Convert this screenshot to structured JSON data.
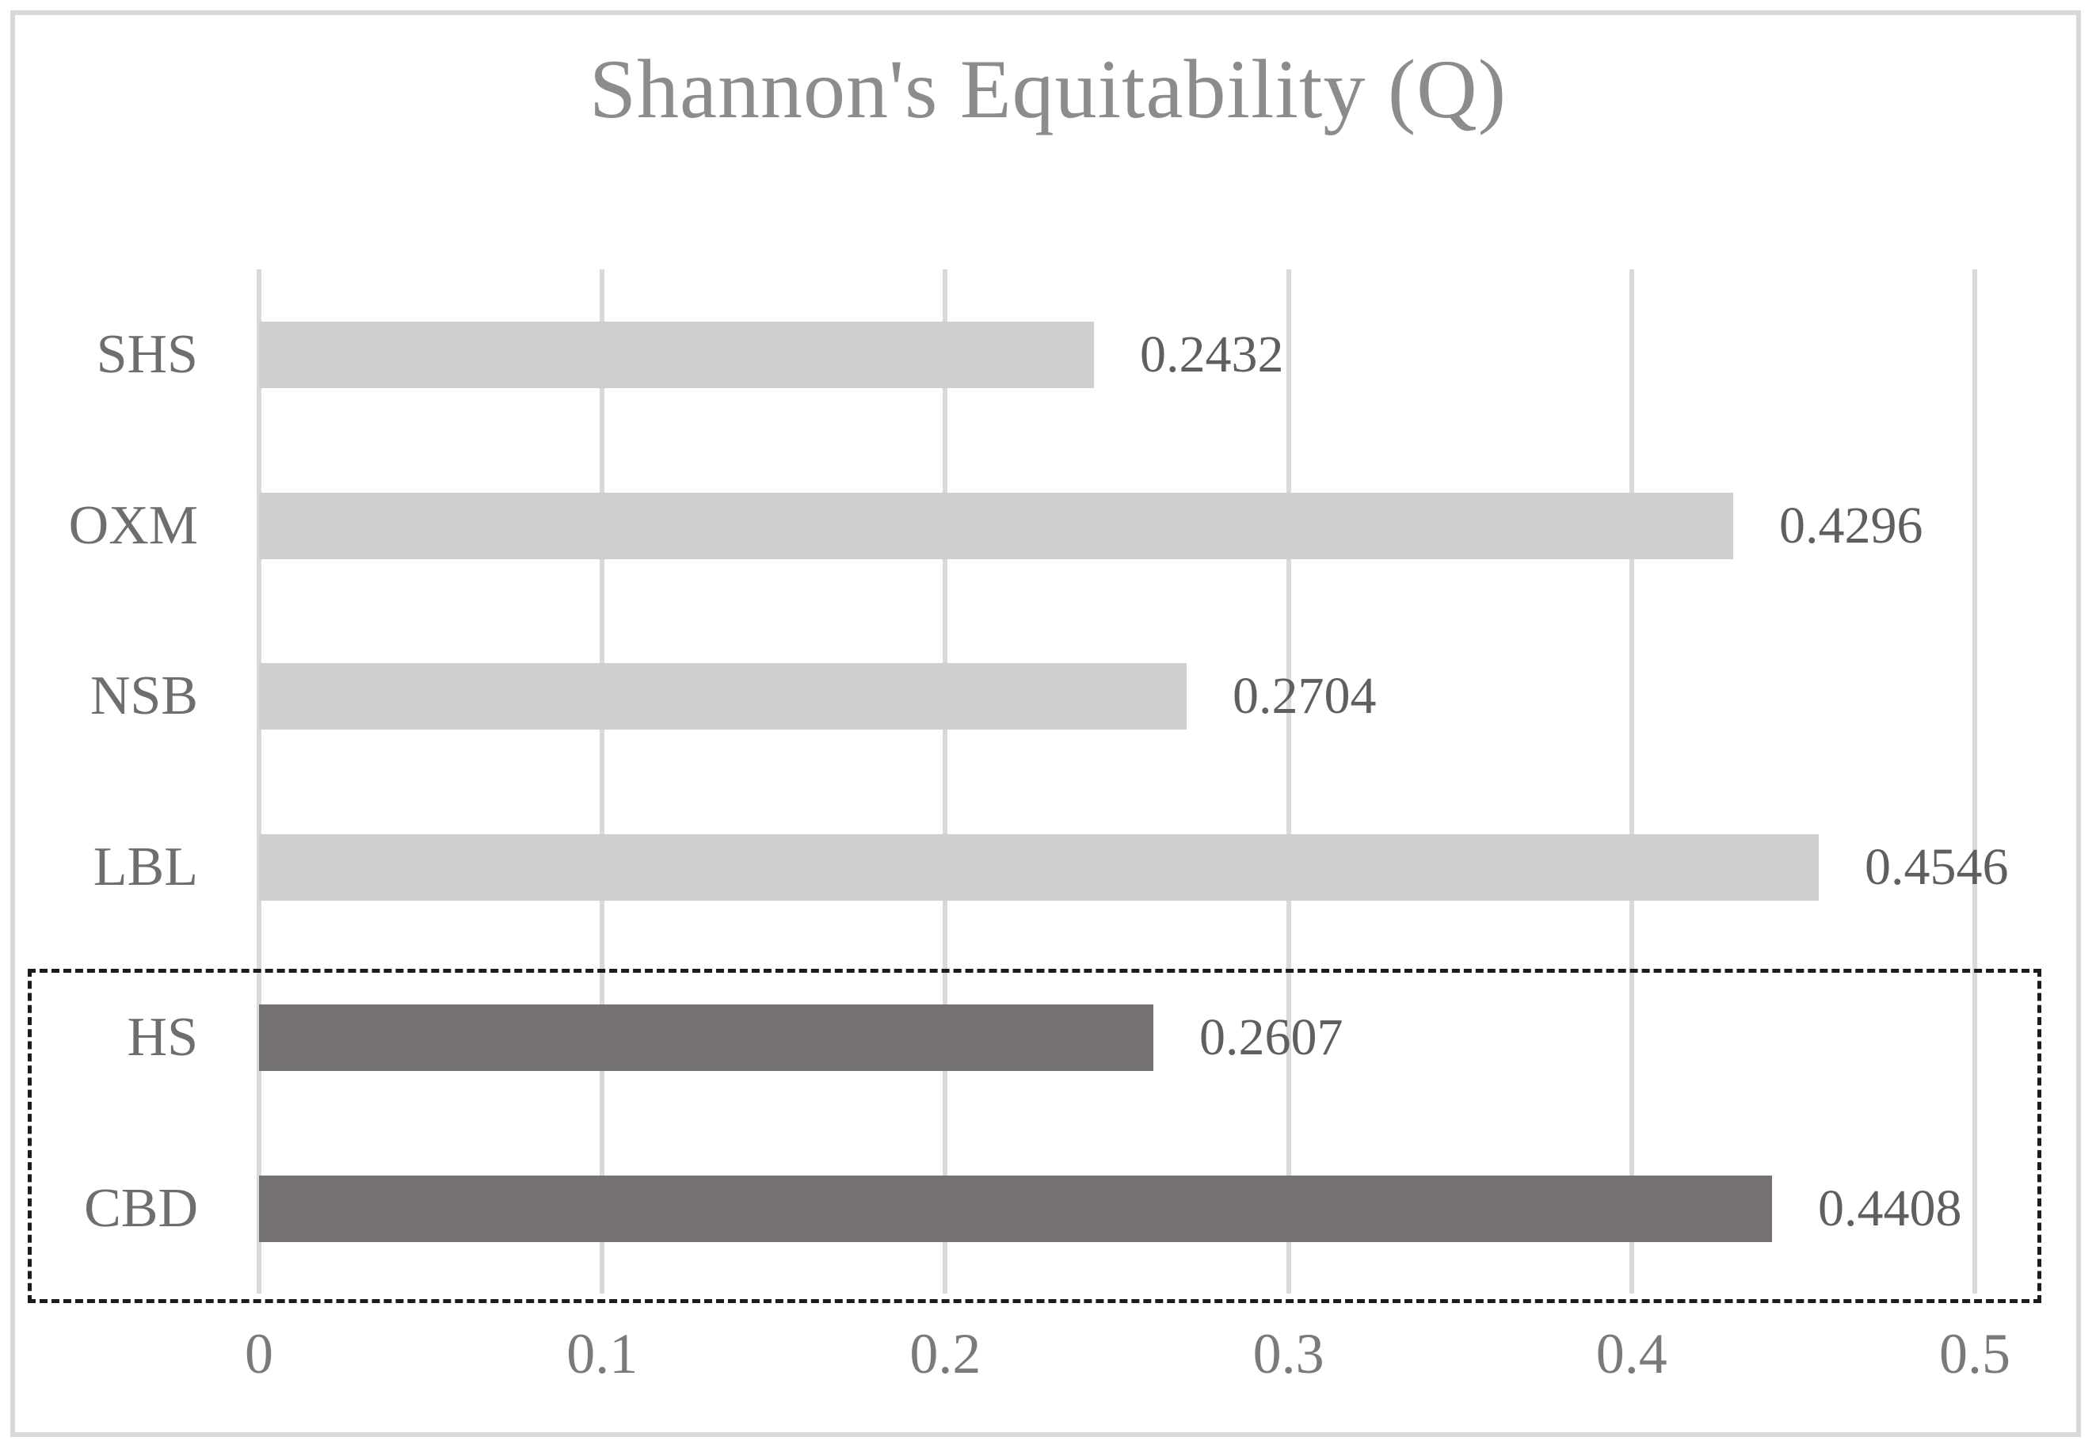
{
  "title": "Shannon's Equitability (Q)",
  "chart_data": {
    "type": "bar",
    "orientation": "horizontal",
    "title": "Shannon's Equitability (Q)",
    "xlabel": "",
    "ylabel": "",
    "categories": [
      "SHS",
      "OXM",
      "NSB",
      "LBL",
      "HS",
      "CBD"
    ],
    "values": [
      0.2432,
      0.4296,
      0.2704,
      0.4546,
      0.2607,
      0.4408
    ],
    "value_labels": [
      "0.2432",
      "0.4296",
      "0.2704",
      "0.4546",
      "0.2607",
      "0.4408"
    ],
    "highlighted": [
      false,
      false,
      false,
      false,
      true,
      true
    ],
    "xlim": [
      0,
      0.5
    ],
    "x_ticks": [
      "0",
      "0.1",
      "0.2",
      "0.3",
      "0.4",
      "0.5"
    ],
    "grid": true,
    "legend": "none",
    "annotation": "dashed rectangle enclosing HS and CBD rows"
  },
  "colors": {
    "bar_default": "#d0cece",
    "bar_highlight": "#767171",
    "gridline": "#d9d9d9",
    "frame_border": "#d9d9d9",
    "dashed_box": "#1c1c1c",
    "title_text": "#8c8c8c",
    "category_text": "#6e6e6e",
    "value_text": "#5f5f5f",
    "tick_text": "#7a7a7a"
  }
}
